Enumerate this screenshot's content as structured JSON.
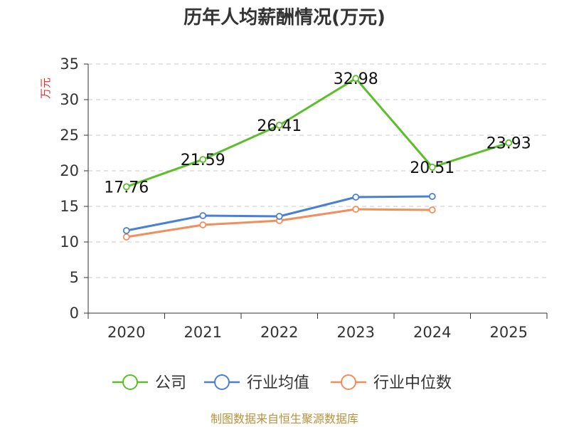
{
  "chart_data": {
    "type": "line",
    "title": "历年人均薪酬情况(万元)",
    "ylabel": "万元",
    "xlabel": "",
    "categories": [
      "2020",
      "2021",
      "2022",
      "2023",
      "2024",
      "2025"
    ],
    "ylim": [
      0,
      35
    ],
    "yticks": [
      0,
      5,
      10,
      15,
      20,
      25,
      30,
      35
    ],
    "grid": true,
    "legend_position": "bottom",
    "series": [
      {
        "name": "公司",
        "color": "#5cbf2a",
        "values": [
          17.76,
          21.59,
          26.41,
          32.98,
          20.51,
          23.93
        ],
        "labels": [
          "17.76",
          "21.59",
          "26.41",
          "32.98",
          "20.51",
          "23.93"
        ]
      },
      {
        "name": "行业均值",
        "color": "#4a7fd6",
        "values": [
          11.6,
          13.7,
          13.6,
          16.3,
          16.4,
          null
        ]
      },
      {
        "name": "行业中位数",
        "color": "#f28e5c",
        "values": [
          10.7,
          12.4,
          13.0,
          14.6,
          14.5,
          null
        ]
      }
    ]
  },
  "source": "制图数据来自恒生聚源数据库"
}
